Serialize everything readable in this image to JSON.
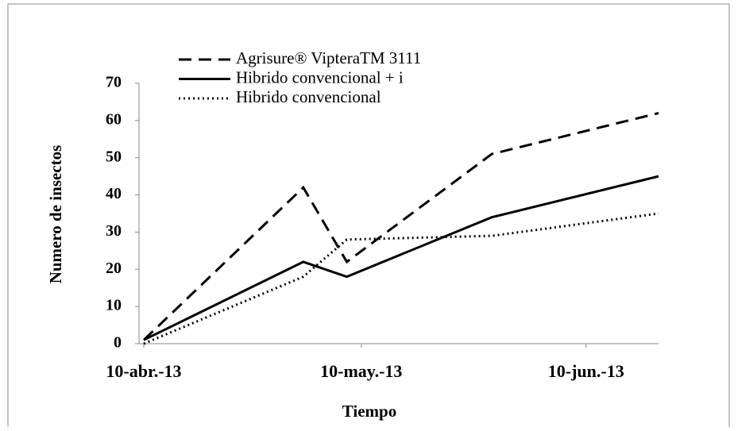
{
  "chart_data": {
    "type": "line",
    "xlabel": "Tiempo",
    "ylabel": "Numero de insectos",
    "x": [
      "2013-04-10",
      "2013-05-02",
      "2013-05-08",
      "2013-05-28",
      "2013-06-20"
    ],
    "series": [
      {
        "name": "Agrisure® VipteraTM 3111",
        "color": "#000000",
        "dash": "dashed",
        "values": [
          1,
          42,
          22,
          51,
          62
        ]
      },
      {
        "name": "Hibrido convencional + i",
        "color": "#000000",
        "dash": "solid",
        "values": [
          1,
          22,
          18,
          34,
          45
        ]
      },
      {
        "name": "Hibrido convencional",
        "color": "#000000",
        "dash": "dotted",
        "values": [
          0,
          18,
          28,
          29,
          35
        ]
      }
    ],
    "xlim": [
      "2013-04-10",
      "2013-06-20"
    ],
    "xticks": [
      {
        "value": "2013-04-10",
        "label": "10-abr.-13"
      },
      {
        "value": "2013-05-10",
        "label": "10-may.-13"
      },
      {
        "value": "2013-06-10",
        "label": "10-jun.-13"
      }
    ],
    "ylim": [
      0,
      70
    ],
    "yticks": [
      0,
      10,
      20,
      30,
      40,
      50,
      60,
      70
    ],
    "legend": "top-left",
    "grid": false
  }
}
